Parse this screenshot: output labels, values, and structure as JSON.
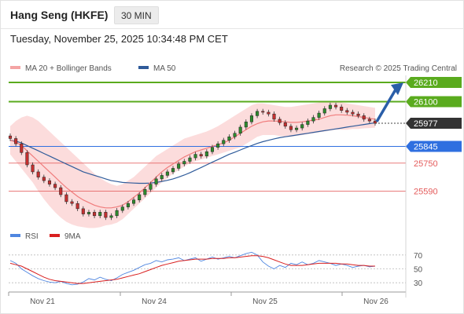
{
  "header": {
    "title": "Hang Seng (HKFE)",
    "interval": "30 MIN",
    "datetime": "Tuesday, November 25, 2025 10:34:48 PM CET"
  },
  "colors": {
    "green": "#5aab1e",
    "blue_level": "#2f6fe0",
    "red_level": "#e45b5b",
    "bollinger": "#fbd6d6",
    "ma20": "#f07c7c",
    "ma50": "#2f5b9a",
    "candle_up": "#2d8a2d",
    "candle_down": "#c43030",
    "rsi": "#4f86e0",
    "rsi_ma": "#d91f1f"
  },
  "chart_data": [
    {
      "type": "candlestick",
      "legend": [
        {
          "name": "MA 20 + Bollinger Bands",
          "color": "#f4a4a4",
          "icon": "legend-swatch"
        },
        {
          "name": "MA 50",
          "color": "#2f5b9a",
          "icon": "legend-swatch"
        }
      ],
      "credit": "Research © 2025 Trading Central",
      "x_labels": [
        "Nov 21",
        "Nov 24",
        "Nov 25",
        "Nov 26"
      ],
      "ylim": [
        25400,
        26250
      ],
      "levels": [
        {
          "value": 26210,
          "label": "26210",
          "kind": "resistance",
          "color": "#5aab1e"
        },
        {
          "value": 26100,
          "label": "26100",
          "kind": "resistance",
          "color": "#5aab1e"
        },
        {
          "value": 25977,
          "label": "25977",
          "kind": "last",
          "color": "#333333"
        },
        {
          "value": 25845,
          "label": "25845",
          "kind": "pivot",
          "color": "#2f6fe0"
        },
        {
          "value": 25750,
          "label": "25750",
          "kind": "support",
          "color": "#e45b5b"
        },
        {
          "value": 25590,
          "label": "25590",
          "kind": "support",
          "color": "#e45b5b"
        }
      ],
      "forecast": {
        "from": 25977,
        "to": 26200,
        "direction": "up"
      },
      "close": [
        25890,
        25860,
        25810,
        25740,
        25700,
        25670,
        25650,
        25630,
        25610,
        25570,
        25530,
        25520,
        25490,
        25460,
        25470,
        25450,
        25470,
        25440,
        25450,
        25480,
        25500,
        25520,
        25540,
        25570,
        25600,
        25630,
        25660,
        25680,
        25700,
        25720,
        25745,
        25760,
        25780,
        25800,
        25790,
        25815,
        25840,
        25860,
        25880,
        25900,
        25920,
        25955,
        25985,
        26020,
        26045,
        26040,
        26030,
        26000,
        25980,
        25960,
        25940,
        25950,
        25970,
        25990,
        26010,
        26035,
        26060,
        26080,
        26070,
        26050,
        26040,
        26030,
        26020,
        26000,
        25990,
        25977
      ],
      "bollinger_upper": [
        25960,
        25990,
        26010,
        26020,
        26010,
        25990,
        25960,
        25930,
        25900,
        25870,
        25840,
        25810,
        25780,
        25750,
        25720,
        25690,
        25665,
        25645,
        25630,
        25620,
        25630,
        25650,
        25670,
        25700,
        25730,
        25760,
        25790,
        25810,
        25830,
        25850,
        25870,
        25890,
        25900,
        25910,
        25920,
        25930,
        25945,
        25960,
        25980,
        26000,
        26020,
        26040,
        26060,
        26080,
        26090,
        26090,
        26085,
        26080,
        26075,
        26070,
        26070,
        26075,
        26080,
        26085,
        26090,
        26095,
        26100,
        26105,
        26100,
        26095,
        26090,
        26085,
        26080,
        26075,
        26070,
        26065
      ],
      "bollinger_lower": [
        25800,
        25760,
        25720,
        25680,
        25640,
        25590,
        25545,
        25505,
        25470,
        25440,
        25415,
        25400,
        25390,
        25385,
        25380,
        25380,
        25385,
        25395,
        25400,
        25410,
        25430,
        25460,
        25490,
        25520,
        25550,
        25580,
        25610,
        25640,
        25665,
        25690,
        25710,
        25730,
        25750,
        25760,
        25770,
        25780,
        25790,
        25800,
        25810,
        25820,
        25830,
        25840,
        25860,
        25880,
        25900,
        25910,
        25910,
        25910,
        25905,
        25900,
        25900,
        25905,
        25910,
        25915,
        25920,
        25925,
        25930,
        25935,
        25940,
        25940,
        25940,
        25945,
        25945,
        25948,
        25950,
        25952
      ],
      "ma20": [
        25880,
        25870,
        25850,
        25820,
        25790,
        25760,
        25730,
        25700,
        25670,
        25640,
        25610,
        25585,
        25560,
        25540,
        25525,
        25510,
        25500,
        25495,
        25495,
        25500,
        25510,
        25530,
        25555,
        25580,
        25610,
        25640,
        25670,
        25700,
        25725,
        25745,
        25765,
        25785,
        25800,
        25815,
        25825,
        25835,
        25845,
        25855,
        25865,
        25880,
        25900,
        25920,
        25940,
        25960,
        25975,
        25985,
        25990,
        25990,
        25988,
        25985,
        25982,
        25982,
        25985,
        25990,
        25995,
        26000,
        26010,
        26020,
        26025,
        26025,
        26023,
        26020,
        26015,
        26010,
        26005,
        26000
      ],
      "ma50": [
        25880,
        25875,
        25865,
        25850,
        25835,
        25820,
        25805,
        25790,
        25775,
        25760,
        25745,
        25730,
        25715,
        25700,
        25690,
        25680,
        25670,
        25660,
        25650,
        25645,
        25640,
        25638,
        25636,
        25635,
        25635,
        25636,
        25640,
        25645,
        25652,
        25660,
        25670,
        25682,
        25695,
        25710,
        25725,
        25740,
        25755,
        25770,
        25785,
        25800,
        25812,
        25825,
        25838,
        25850,
        25862,
        25872,
        25880,
        25888,
        25895,
        25900,
        25905,
        25910,
        25915,
        25920,
        25925,
        25930,
        25935,
        25940,
        25945,
        25950,
        25955,
        25960,
        25965,
        25970,
        25975,
        25980
      ]
    },
    {
      "type": "line",
      "legend": [
        {
          "name": "RSI",
          "color": "#4f86e0",
          "icon": "legend-swatch"
        },
        {
          "name": "9MA",
          "color": "#d91f1f",
          "icon": "legend-swatch"
        }
      ],
      "ylim": [
        20,
        80
      ],
      "y_ticks": [
        70,
        50,
        30
      ],
      "series": [
        {
          "name": "RSI",
          "values": [
            62,
            58,
            50,
            45,
            40,
            36,
            33,
            31,
            30,
            32,
            29,
            27,
            28,
            31,
            36,
            34,
            38,
            35,
            33,
            37,
            42,
            45,
            48,
            52,
            56,
            58,
            62,
            60,
            63,
            64,
            66,
            62,
            64,
            66,
            61,
            64,
            67,
            64,
            66,
            68,
            66,
            69,
            72,
            74,
            70,
            60,
            54,
            50,
            55,
            52,
            58,
            56,
            60,
            56,
            58,
            62,
            60,
            58,
            55,
            57,
            55,
            52,
            54,
            55,
            53,
            54
          ]
        },
        {
          "name": "9MA",
          "values": [
            58,
            56,
            54,
            50,
            46,
            42,
            38,
            35,
            33,
            32,
            31,
            30,
            29,
            29,
            30,
            31,
            32,
            33,
            34,
            35,
            37,
            39,
            41,
            43,
            46,
            49,
            52,
            55,
            57,
            59,
            61,
            62,
            63,
            64,
            64,
            64,
            65,
            65,
            65,
            66,
            66,
            67,
            68,
            69,
            69,
            68,
            66,
            63,
            60,
            57,
            55,
            55,
            55,
            56,
            57,
            58,
            58,
            58,
            58,
            57,
            57,
            56,
            55,
            55,
            54,
            54
          ]
        }
      ]
    }
  ]
}
